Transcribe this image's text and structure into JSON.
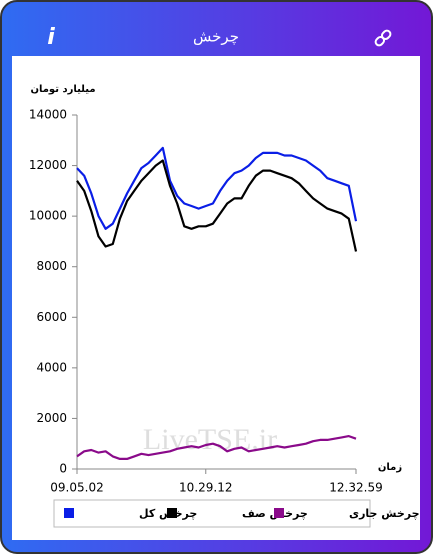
{
  "header": {
    "title": "چرخش",
    "info": "i"
  },
  "watermark": "LiveTSE.ir",
  "chart_data": {
    "type": "line",
    "y_label": "میلیارد تومان",
    "x_label": "زمان",
    "categories": [
      "09.05.02",
      null,
      null,
      null,
      null,
      null,
      null,
      null,
      null,
      null,
      null,
      null,
      null,
      null,
      null,
      null,
      null,
      null,
      "10.29.12",
      null,
      null,
      null,
      null,
      null,
      null,
      null,
      null,
      null,
      null,
      null,
      null,
      null,
      null,
      null,
      null,
      null,
      null,
      null,
      null,
      "12.32.59"
    ],
    "ylim": [
      0,
      14000
    ],
    "yticks": [
      0,
      2000,
      4000,
      6000,
      8000,
      10000,
      12000,
      14000
    ],
    "legend": "bottom",
    "series": [
      {
        "name": "چرخش کل",
        "color": "#0a1ee6",
        "values": [
          11900,
          11600,
          10900,
          10000,
          9500,
          9700,
          10300,
          10900,
          11400,
          11900,
          12100,
          12400,
          12700,
          11400,
          10800,
          10500,
          10400,
          10300,
          10400,
          10500,
          11000,
          11400,
          11700,
          11800,
          12000,
          12300,
          12500,
          12500,
          12500,
          12400,
          12400,
          12300,
          12200,
          12000,
          11800,
          11500,
          11400,
          11300,
          11200,
          9800
        ]
      },
      {
        "name": "چرخش صف",
        "color": "#000000",
        "values": [
          11400,
          11000,
          10200,
          9200,
          8800,
          8900,
          9900,
          10600,
          11000,
          11400,
          11700,
          12000,
          12200,
          11200,
          10500,
          9600,
          9500,
          9600,
          9600,
          9700,
          10100,
          10500,
          10700,
          10700,
          11200,
          11600,
          11800,
          11800,
          11700,
          11600,
          11500,
          11300,
          11000,
          10700,
          10500,
          10300,
          10200,
          10100,
          9900,
          8600
        ]
      },
      {
        "name": "چرخش جاری",
        "color": "#8a0a8a",
        "values": [
          500,
          700,
          750,
          650,
          700,
          500,
          400,
          400,
          500,
          600,
          550,
          600,
          650,
          700,
          800,
          850,
          900,
          850,
          950,
          1000,
          900,
          700,
          800,
          850,
          700,
          750,
          800,
          850,
          900,
          850,
          900,
          950,
          1000,
          1100,
          1150,
          1150,
          1200,
          1250,
          1300,
          1200
        ]
      }
    ]
  }
}
